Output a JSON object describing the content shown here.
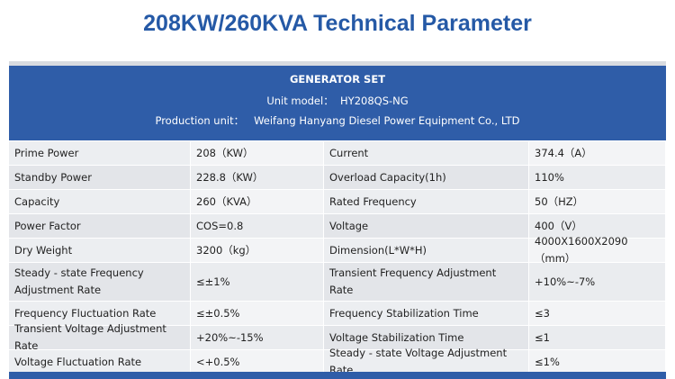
{
  "title": "208KW/260KVA Technical Parameter",
  "header": {
    "heading": "GENERATOR SET",
    "lines": [
      {
        "label": "Unit model：",
        "value": "HY208QS-NG"
      },
      {
        "label": "Production unit：",
        "value": "Weifang Hanyang Diesel Power Equipment Co., LTD"
      }
    ]
  },
  "table": {
    "rows": [
      [
        "Prime Power",
        "208（KW）",
        "Current",
        "374.4（A）"
      ],
      [
        "Standby   Power",
        "228.8（KW）",
        "Overload Capacity(1h)",
        "110%"
      ],
      [
        "Capacity",
        "260（KVA）",
        "Rated Frequency",
        "50（HZ）"
      ],
      [
        "Power Factor",
        "COS=0.8",
        "Voltage",
        "400（V）"
      ],
      [
        "Dry Weight",
        "3200（kg）",
        "Dimension(L*W*H)",
        "4000X1600X2090（mm）"
      ],
      [
        "Steady - state Frequency Adjustment Rate",
        "≤±1%",
        "Transient Frequency Adjustment Rate",
        "+10%~-7%"
      ],
      [
        "Frequency Fluctuation Rate",
        "≤±0.5%",
        "Frequency Stabilization Time",
        "≤3"
      ],
      [
        "Transient Voltage Adjustment Rate",
        "+20%~-15%",
        "Voltage Stabilization Time",
        "≤1"
      ],
      [
        "Voltage Fluctuation Rate",
        "<+0.5%",
        "Steady - state Voltage Adjustment Rate",
        "≤1%"
      ]
    ]
  }
}
